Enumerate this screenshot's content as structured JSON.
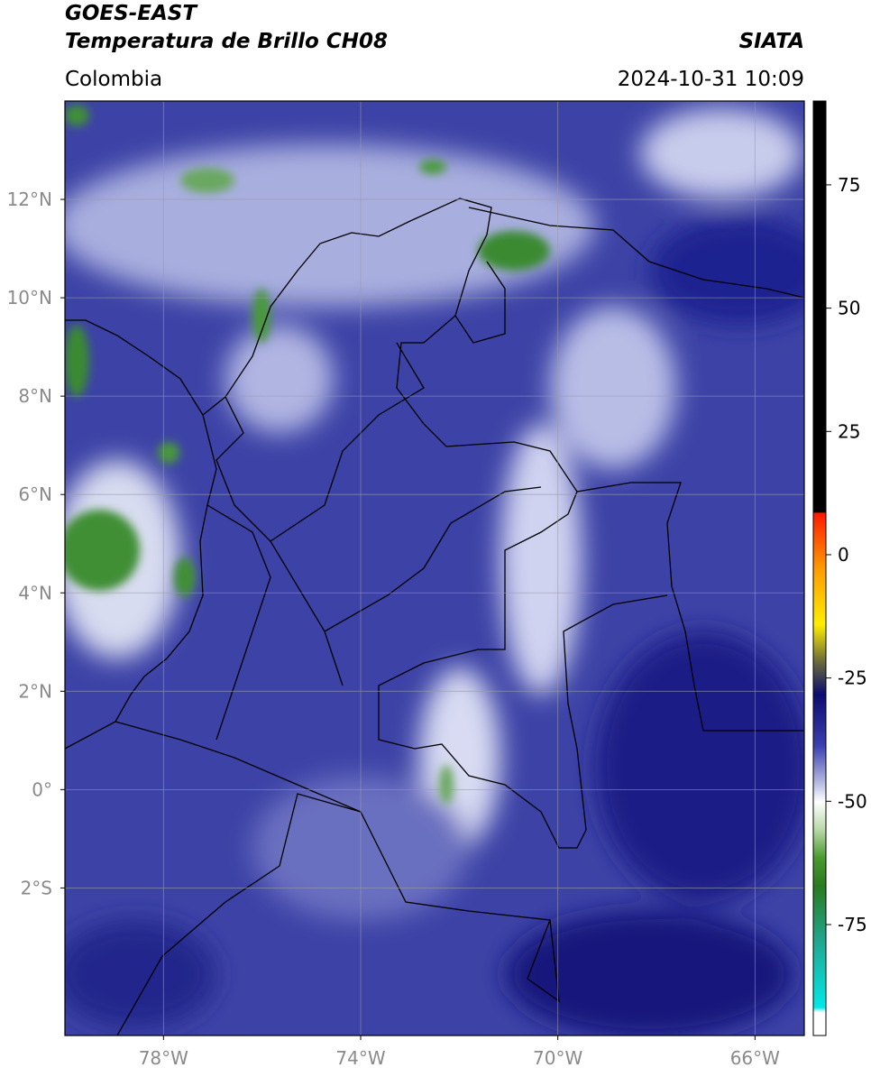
{
  "chart_data": {
    "type": "map",
    "title": "GOES-EAST",
    "subtitle": "Temperatura de Brillo CH08",
    "region": "Colombia",
    "source": "SIATA",
    "timestamp": "2024-10-31 10:09",
    "xlim": [
      -80,
      -65
    ],
    "ylim": [
      -5,
      14
    ],
    "xticks": [
      {
        "value": -78,
        "label": "78°W"
      },
      {
        "value": -74,
        "label": "74°W"
      },
      {
        "value": -70,
        "label": "70°W"
      },
      {
        "value": -66,
        "label": "66°W"
      }
    ],
    "yticks": [
      {
        "value": 12,
        "label": "12°N"
      },
      {
        "value": 10,
        "label": "10°N"
      },
      {
        "value": 8,
        "label": "8°N"
      },
      {
        "value": 6,
        "label": "6°N"
      },
      {
        "value": 4,
        "label": "4°N"
      },
      {
        "value": 2,
        "label": "2°N"
      },
      {
        "value": 0,
        "label": "0°"
      },
      {
        "value": -2,
        "label": "2°S"
      }
    ],
    "grid": true,
    "colorbar": {
      "lim": [
        -97.5,
        92
      ],
      "ticks": [
        75,
        50,
        25,
        0,
        -25,
        -50,
        -75
      ]
    }
  }
}
